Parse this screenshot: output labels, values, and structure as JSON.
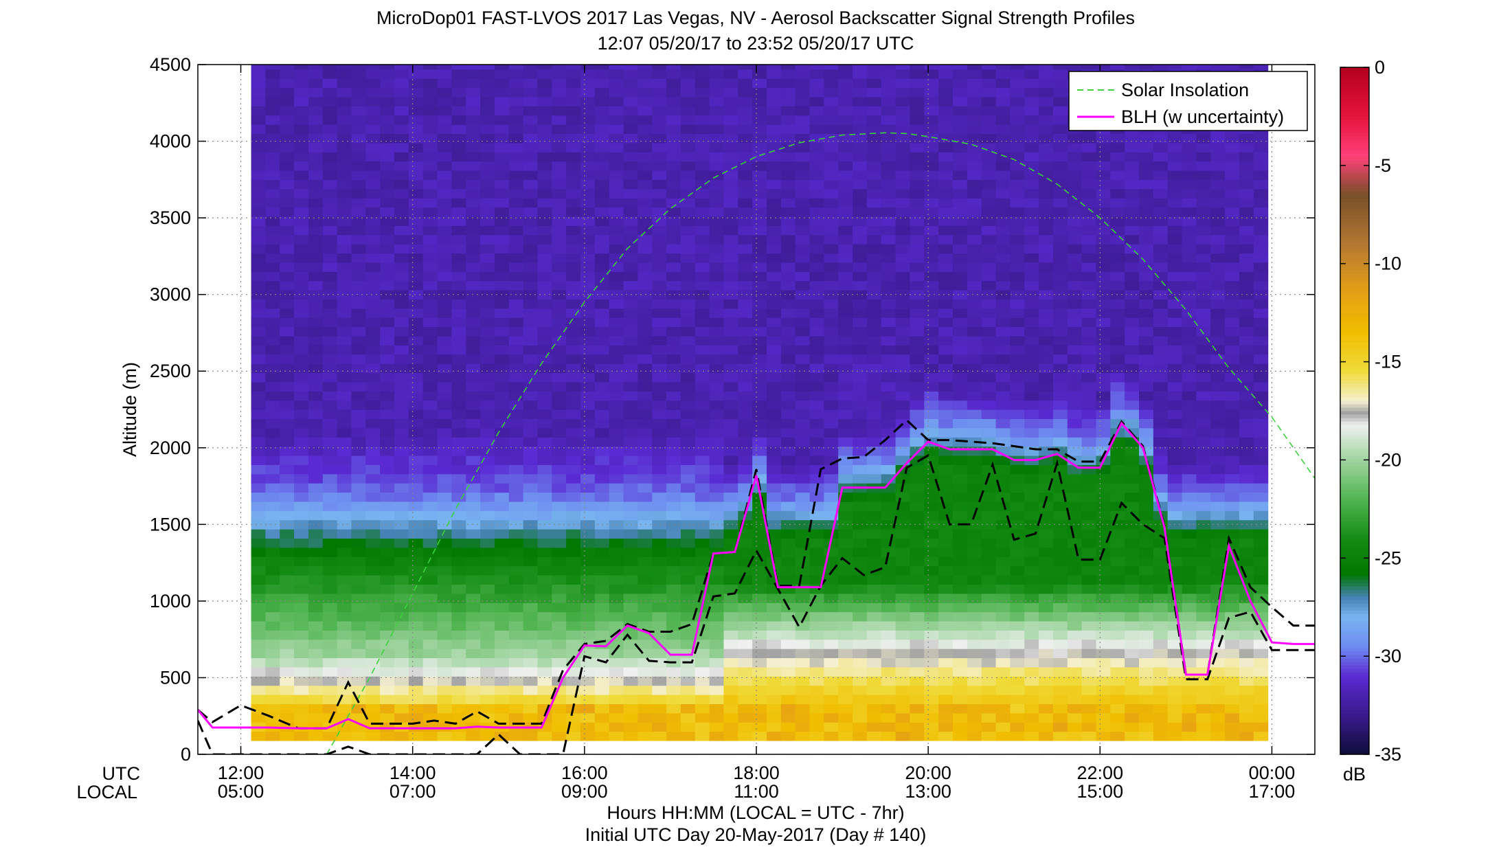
{
  "chart_data": {
    "type": "heatmap",
    "title": "MicroDop01 FAST-LVOS 2017 Las Vegas, NV - Aerosol Backscatter Signal Strength Profiles",
    "subtitle": "12:07 05/20/17 to 23:52 05/20/17  UTC",
    "xlabel": "Hours HH:MM  (LOCAL = UTC - 7hr)",
    "xlabel2": "Initial UTC Day 20-May-2017 (Day # 140)",
    "ylabel": "Altitude (m)",
    "row_label_utc": "UTC",
    "row_label_local": "LOCAL",
    "xlim": [
      11.5,
      24.5
    ],
    "ylim": [
      0,
      4500
    ],
    "data_time_range": [
      12.12,
      23.87
    ],
    "yticks": [
      0,
      500,
      1000,
      1500,
      2000,
      2500,
      3000,
      3500,
      4000,
      4500
    ],
    "xticks": [
      {
        "h": 12,
        "utc": "12:00",
        "local": "05:00"
      },
      {
        "h": 14,
        "utc": "14:00",
        "local": "07:00"
      },
      {
        "h": 16,
        "utc": "16:00",
        "local": "09:00"
      },
      {
        "h": 18,
        "utc": "18:00",
        "local": "11:00"
      },
      {
        "h": 20,
        "utc": "20:00",
        "local": "13:00"
      },
      {
        "h": 22,
        "utc": "22:00",
        "local": "15:00"
      },
      {
        "h": 24,
        "utc": "00:00",
        "local": "17:00"
      }
    ],
    "grid": true,
    "legend_position": "top-right",
    "legend": [
      {
        "name": "Solar Insolation",
        "color": "#3cd23c",
        "style": "dashed"
      },
      {
        "name": "BLH (w uncertainty)",
        "color": "#ff00ff",
        "style": "solid"
      }
    ],
    "colorbar": {
      "label": "dB",
      "range": [
        -35,
        0
      ],
      "ticks": [
        0,
        -5,
        -10,
        -15,
        -20,
        -25,
        -30,
        -35
      ],
      "stops": [
        {
          "v": -35,
          "c": "#0d0d3a"
        },
        {
          "v": -33,
          "c": "#3a1a8c"
        },
        {
          "v": -31,
          "c": "#5a2ad2"
        },
        {
          "v": -29.5,
          "c": "#6e8cf0"
        },
        {
          "v": -28,
          "c": "#78b4f0"
        },
        {
          "v": -27,
          "c": "#4682b4"
        },
        {
          "v": -25.8,
          "c": "#007800"
        },
        {
          "v": -24,
          "c": "#148c14"
        },
        {
          "v": -22,
          "c": "#50b450"
        },
        {
          "v": -19.5,
          "c": "#b4dcb4"
        },
        {
          "v": -18.2,
          "c": "#f0f0f0"
        },
        {
          "v": -17.6,
          "c": "#a0a0a0"
        },
        {
          "v": -17,
          "c": "#f5f0d0"
        },
        {
          "v": -15.5,
          "c": "#f0dc3c"
        },
        {
          "v": -13.5,
          "c": "#f0be00"
        },
        {
          "v": -11.5,
          "c": "#e6a014"
        },
        {
          "v": -9,
          "c": "#b47832"
        },
        {
          "v": -6.5,
          "c": "#785028"
        },
        {
          "v": -4.5,
          "c": "#ff4078"
        },
        {
          "v": -2.5,
          "c": "#e6143c"
        },
        {
          "v": 0,
          "c": "#b4001e"
        }
      ]
    },
    "blh": {
      "name": "BLH (w uncertainty)",
      "x": [
        11.5,
        11.67,
        12.0,
        12.33,
        12.67,
        13.0,
        13.25,
        13.5,
        13.75,
        14.0,
        14.25,
        14.5,
        14.75,
        15.0,
        15.25,
        15.5,
        15.75,
        16.0,
        16.25,
        16.5,
        16.75,
        17.0,
        17.25,
        17.5,
        17.75,
        18.0,
        18.25,
        18.5,
        18.75,
        19.0,
        19.25,
        19.5,
        19.75,
        20.0,
        20.25,
        20.5,
        20.75,
        21.0,
        21.25,
        21.5,
        21.75,
        22.0,
        22.25,
        22.5,
        22.75,
        23.0,
        23.25,
        23.5,
        23.75,
        24.0,
        24.25,
        24.5
      ],
      "y": [
        290,
        175,
        175,
        175,
        170,
        170,
        230,
        170,
        170,
        170,
        170,
        170,
        180,
        175,
        175,
        175,
        500,
        710,
        705,
        840,
        790,
        650,
        650,
        1310,
        1320,
        1820,
        1090,
        1090,
        1090,
        1740,
        1740,
        1740,
        1900,
        2040,
        1990,
        1990,
        1990,
        1920,
        1920,
        1960,
        1870,
        1870,
        2160,
        2000,
        1480,
        520,
        520,
        1360,
        1000,
        730,
        720,
        720
      ],
      "upper": [
        290,
        210,
        320,
        250,
        170,
        170,
        470,
        200,
        200,
        200,
        220,
        200,
        280,
        200,
        200,
        200,
        550,
        720,
        740,
        850,
        800,
        800,
        850,
        1310,
        1320,
        1860,
        1100,
        1100,
        1860,
        1930,
        1940,
        2050,
        2180,
        2050,
        2050,
        2040,
        2030,
        2010,
        1990,
        1990,
        1910,
        1910,
        2170,
        2010,
        1490,
        520,
        520,
        1410,
        1090,
        960,
        840,
        840
      ],
      "lower": [
        220,
        0,
        0,
        0,
        0,
        0,
        50,
        0,
        0,
        0,
        0,
        0,
        0,
        130,
        0,
        0,
        0,
        640,
        600,
        780,
        610,
        600,
        600,
        1030,
        1050,
        1330,
        1080,
        830,
        1100,
        1280,
        1170,
        1220,
        1870,
        1950,
        1500,
        1500,
        1890,
        1400,
        1440,
        1900,
        1270,
        1270,
        1640,
        1500,
        1410,
        490,
        490,
        890,
        930,
        680,
        680,
        680
      ]
    },
    "solar": {
      "name": "Solar Insolation",
      "x": [
        13.0,
        13.5,
        14.0,
        14.5,
        15.0,
        15.5,
        16.0,
        16.5,
        17.0,
        17.5,
        18.0,
        18.5,
        19.0,
        19.5,
        19.75,
        20.0,
        20.5,
        21.0,
        21.5,
        22.0,
        22.5,
        23.0,
        23.5,
        24.0,
        24.5
      ],
      "y": [
        0,
        500,
        1050,
        1600,
        2100,
        2550,
        2950,
        3300,
        3560,
        3760,
        3900,
        3990,
        4040,
        4055,
        4050,
        4030,
        3980,
        3880,
        3720,
        3500,
        3230,
        2900,
        2520,
        2200,
        1800
      ]
    }
  }
}
